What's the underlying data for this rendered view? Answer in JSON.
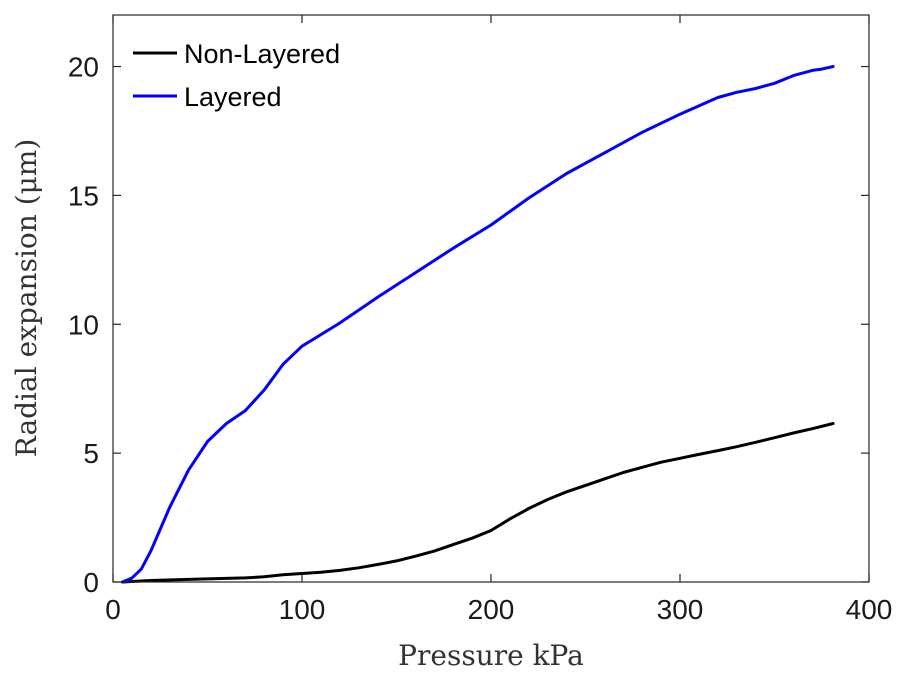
{
  "chart_data": {
    "type": "line",
    "title": "",
    "xlabel": "Pressure kPa",
    "ylabel": "Radial expansion (μm)",
    "xlim": [
      0,
      400
    ],
    "ylim": [
      0,
      22
    ],
    "xticks": [
      0,
      100,
      200,
      300,
      400
    ],
    "yticks": [
      0,
      5,
      10,
      15,
      20
    ],
    "xtick_labels": [
      "0",
      "100",
      "200",
      "300",
      "400"
    ],
    "ytick_labels": [
      "0",
      "5",
      "10",
      "15",
      "20"
    ],
    "grid": false,
    "legend_position": "top-left",
    "series": [
      {
        "name": "Non-Layered",
        "color": "#000000",
        "x": [
          5,
          10,
          20,
          40,
          60,
          70,
          80,
          90,
          100,
          110,
          120,
          130,
          140,
          150,
          160,
          170,
          180,
          190,
          200,
          210,
          220,
          230,
          240,
          250,
          260,
          270,
          280,
          290,
          300,
          310,
          320,
          330,
          340,
          350,
          360,
          370,
          381
        ],
        "y": [
          0.0,
          0.02,
          0.06,
          0.1,
          0.14,
          0.16,
          0.2,
          0.28,
          0.33,
          0.38,
          0.45,
          0.55,
          0.68,
          0.82,
          1.0,
          1.2,
          1.45,
          1.7,
          2.0,
          2.45,
          2.85,
          3.2,
          3.5,
          3.75,
          4.0,
          4.25,
          4.45,
          4.65,
          4.8,
          4.95,
          5.1,
          5.25,
          5.42,
          5.6,
          5.78,
          5.95,
          6.15
        ]
      },
      {
        "name": "Layered",
        "color": "#0000ff",
        "x": [
          5,
          10,
          15,
          20,
          30,
          40,
          50,
          60,
          70,
          80,
          90,
          100,
          110,
          120,
          140,
          160,
          180,
          200,
          220,
          240,
          260,
          280,
          300,
          320,
          330,
          340,
          350,
          360,
          370,
          375,
          381
        ],
        "y": [
          0.0,
          0.15,
          0.5,
          1.2,
          2.9,
          4.35,
          5.45,
          6.15,
          6.65,
          7.45,
          8.45,
          9.15,
          9.6,
          10.05,
          11.05,
          12.0,
          12.95,
          13.85,
          14.9,
          15.85,
          16.65,
          17.45,
          18.15,
          18.8,
          19.0,
          19.15,
          19.35,
          19.65,
          19.85,
          19.9,
          20.0
        ]
      }
    ]
  }
}
